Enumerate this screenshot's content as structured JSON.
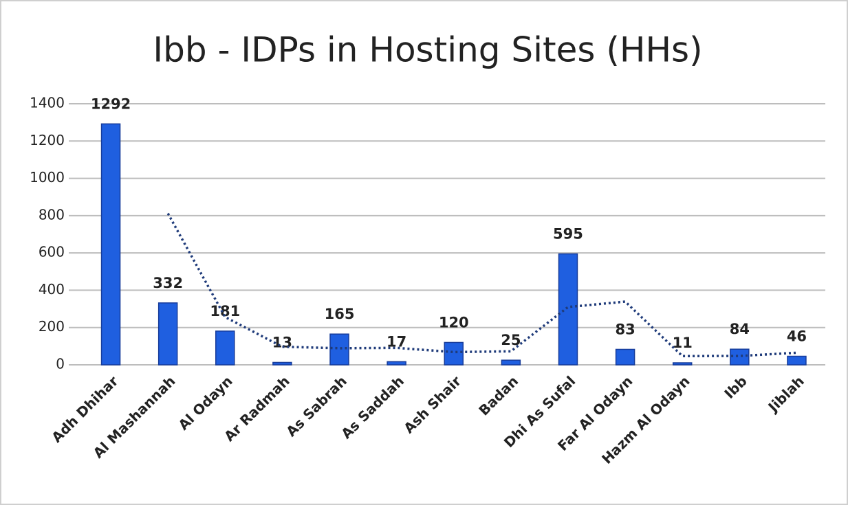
{
  "chart_data": {
    "type": "bar",
    "title": "Ibb - IDPs in Hosting Sites (HHs)",
    "categories": [
      "Adh Dhihar",
      "Al Mashannah",
      "Al Odayn",
      "Ar Radmah",
      "As Sabrah",
      "As Saddah",
      "Ash Shair",
      "Badan",
      "Dhi As Sufal",
      "Far Al Odayn",
      "Hazm Al Odayn",
      "Ibb",
      "Jiblah"
    ],
    "values": [
      1292,
      332,
      181,
      13,
      165,
      17,
      120,
      25,
      595,
      83,
      11,
      84,
      46
    ],
    "color": "#1f5fe0",
    "trendline": {
      "style": "dotted",
      "color": "#1f3b7a",
      "values": [
        null,
        812,
        256.5,
        97,
        89,
        91,
        68.5,
        72.5,
        310,
        339,
        47,
        47.5,
        65
      ]
    },
    "ylim": [
      0,
      1400
    ],
    "yticks": [
      0,
      200,
      400,
      600,
      800,
      1000,
      1200,
      1400
    ],
    "grid": true
  }
}
